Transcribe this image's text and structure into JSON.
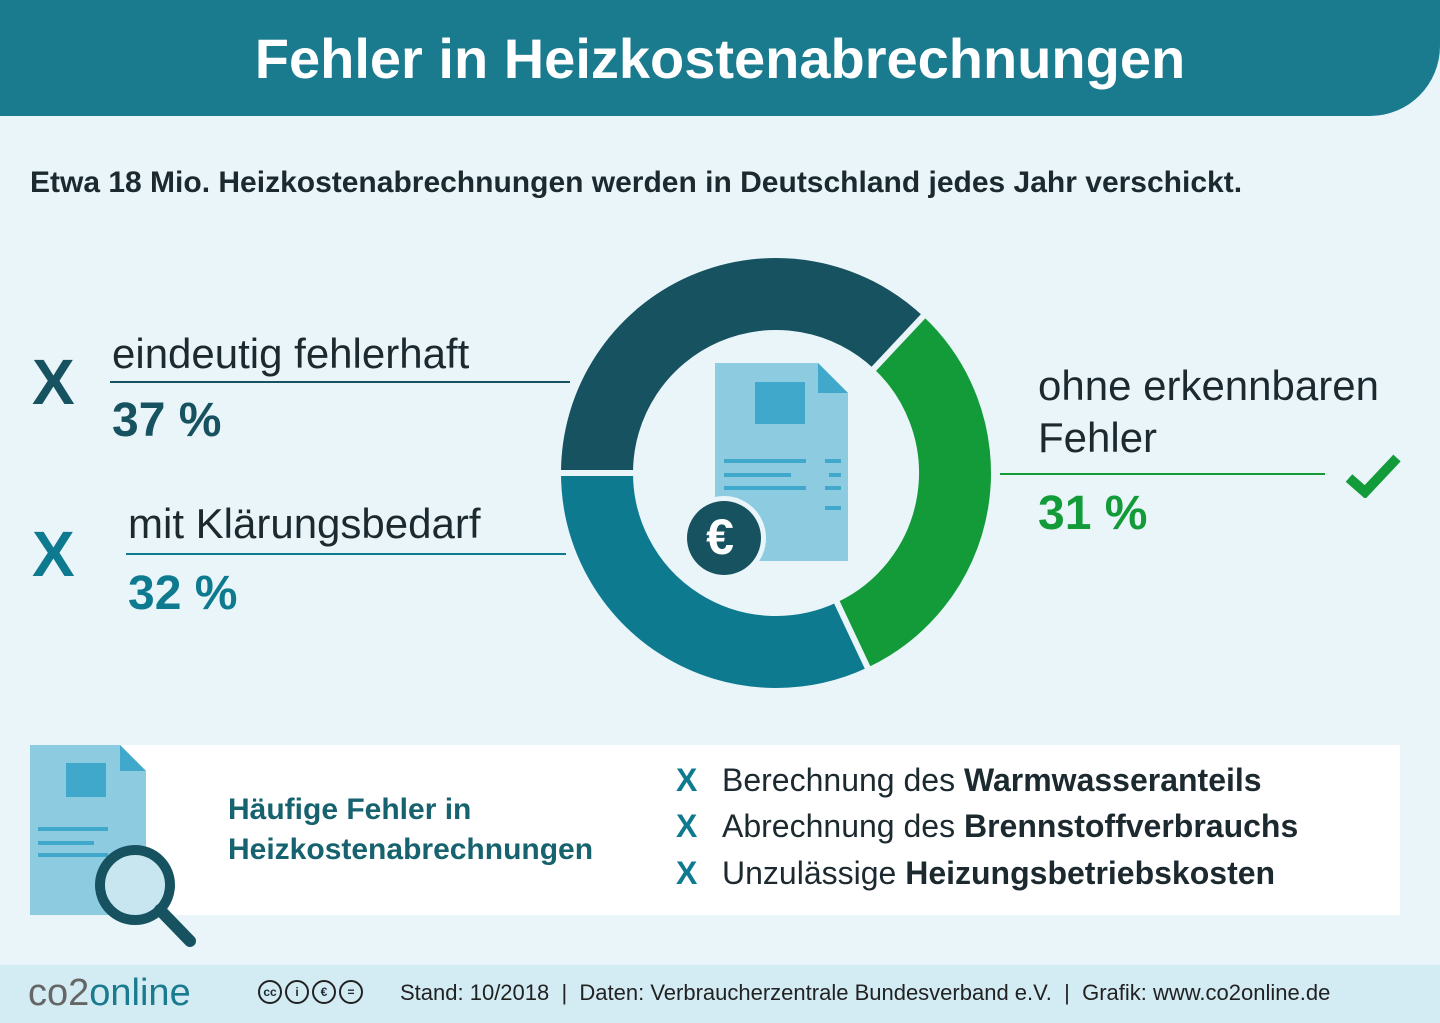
{
  "title": "Fehler in Heizkostenabrechnungen",
  "subtitle": "Etwa 18 Mio. Heizkostenabrechnungen werden in Deutschland jedes Jahr verschickt.",
  "chart_data": {
    "type": "pie",
    "donut": true,
    "categories": [
      "eindeutig fehlerhaft",
      "ohne erkennbaren Fehler",
      "mit Klärungsbedarf"
    ],
    "values": [
      37,
      31,
      32
    ],
    "labels": [
      "37 %",
      "31 %",
      "32 %"
    ],
    "colors": [
      "#16525f",
      "#129b38",
      "#0e7a90"
    ],
    "center_icon": "invoice-radiator-euro-icon"
  },
  "labels": {
    "fehlerhaft": "eindeutig fehlerhaft",
    "klaerung": "mit Klärungsbedarf",
    "ohne_1": "ohne erkennbaren",
    "ohne_2": "Fehler",
    "x_mark": "X",
    "check_icon": "check-icon"
  },
  "box": {
    "title_1": "Häufige Fehler in",
    "title_2": "Heizkostenabrechnungen",
    "items": [
      {
        "prefix": "Berechnung des",
        "bold": "Warmwasseranteils"
      },
      {
        "prefix": "Abrechnung des",
        "bold": "Brennstoffverbrauchs"
      },
      {
        "prefix": "Unzulässige",
        "bold": "Heizungsbetriebskosten"
      }
    ]
  },
  "footer": {
    "logo_a": "co2",
    "logo_b": "online",
    "license": [
      "cc",
      "i",
      "€",
      "="
    ],
    "credits": "Stand: 10/2018  |  Daten: Verbraucherzentrale Bundesverband e.V.  |  Grafik: www.co2online.de"
  }
}
